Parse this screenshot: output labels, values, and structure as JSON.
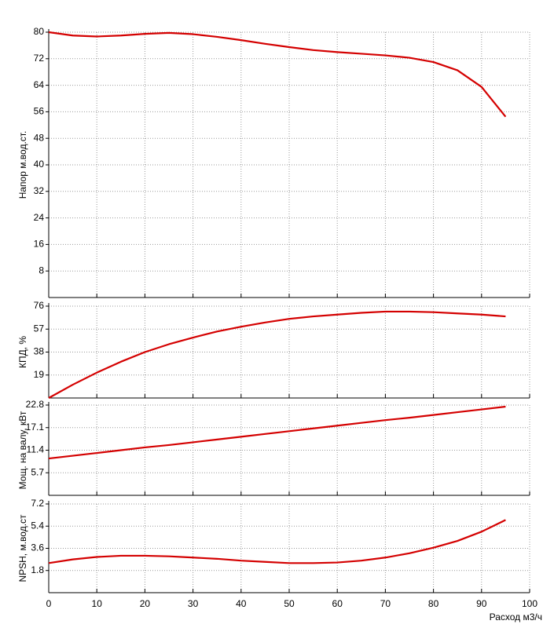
{
  "chart_data": [
    {
      "type": "line",
      "y_label": "Напор м.вод.ст.",
      "x": [
        0,
        5,
        10,
        15,
        20,
        25,
        30,
        35,
        40,
        45,
        50,
        55,
        60,
        65,
        70,
        75,
        80,
        85,
        90,
        95
      ],
      "series": [
        {
          "color": "#d40000",
          "values": [
            80,
            79,
            78.7,
            79,
            79.5,
            79.8,
            79.4,
            78.6,
            77.6,
            76.5,
            75.5,
            74.6,
            74,
            73.5,
            73,
            72.3,
            71,
            68.5,
            63.5,
            54.5
          ]
        }
      ],
      "xlim": [
        0,
        100
      ],
      "xticks": [
        0,
        10,
        20,
        30,
        40,
        50,
        60,
        70,
        80,
        90,
        100
      ],
      "ylim": [
        0,
        80
      ],
      "yticks": [
        8,
        16,
        24,
        32,
        40,
        48,
        56,
        64,
        72,
        80
      ],
      "grid": true
    },
    {
      "type": "line",
      "y_label": "КПД, %",
      "x": [
        0,
        5,
        10,
        15,
        20,
        25,
        30,
        35,
        40,
        45,
        50,
        55,
        60,
        65,
        70,
        75,
        80,
        85,
        90,
        95
      ],
      "series": [
        {
          "color": "#d40000",
          "values": [
            0,
            11,
            21,
            30,
            38,
            44.5,
            50,
            55,
            59,
            62.5,
            65.5,
            67.5,
            69,
            70.5,
            71.5,
            71.5,
            71,
            70,
            69,
            67.5
          ]
        }
      ],
      "xlim": [
        0,
        100
      ],
      "xticks": [
        0,
        10,
        20,
        30,
        40,
        50,
        60,
        70,
        80,
        90,
        100
      ],
      "ylim": [
        0,
        76
      ],
      "yticks": [
        19,
        38,
        57,
        76
      ],
      "grid": true
    },
    {
      "type": "line",
      "y_label": "Мощ. на валу, кВт",
      "x": [
        0,
        5,
        10,
        15,
        20,
        25,
        30,
        35,
        40,
        45,
        50,
        55,
        60,
        65,
        70,
        75,
        80,
        85,
        90,
        95
      ],
      "series": [
        {
          "color": "#d40000",
          "values": [
            9.3,
            10,
            10.7,
            11.4,
            12.1,
            12.7,
            13.4,
            14.1,
            14.8,
            15.5,
            16.2,
            16.9,
            17.6,
            18.3,
            19,
            19.6,
            20.3,
            21,
            21.7,
            22.4
          ]
        }
      ],
      "xlim": [
        0,
        100
      ],
      "xticks": [
        0,
        10,
        20,
        30,
        40,
        50,
        60,
        70,
        80,
        90,
        100
      ],
      "ylim": [
        0,
        22.8
      ],
      "yticks": [
        5.7,
        11.4,
        17.1,
        22.8
      ],
      "grid": true
    },
    {
      "type": "line",
      "y_label": "NPSH, м.вод.ст",
      "x_label": "Расход м3/ч",
      "x": [
        0,
        5,
        10,
        15,
        20,
        25,
        30,
        35,
        40,
        45,
        50,
        55,
        60,
        65,
        70,
        75,
        80,
        85,
        90,
        95
      ],
      "series": [
        {
          "color": "#d40000",
          "values": [
            2.4,
            2.7,
            2.9,
            3,
            3,
            2.95,
            2.85,
            2.75,
            2.6,
            2.5,
            2.4,
            2.4,
            2.45,
            2.6,
            2.85,
            3.2,
            3.65,
            4.2,
            4.95,
            5.9
          ]
        }
      ],
      "xlim": [
        0,
        100
      ],
      "xticks": [
        0,
        10,
        20,
        30,
        40,
        50,
        60,
        70,
        80,
        90,
        100
      ],
      "ylim": [
        0,
        7.2
      ],
      "yticks": [
        1.8,
        3.6,
        5.4,
        7.2
      ],
      "grid": true
    }
  ]
}
